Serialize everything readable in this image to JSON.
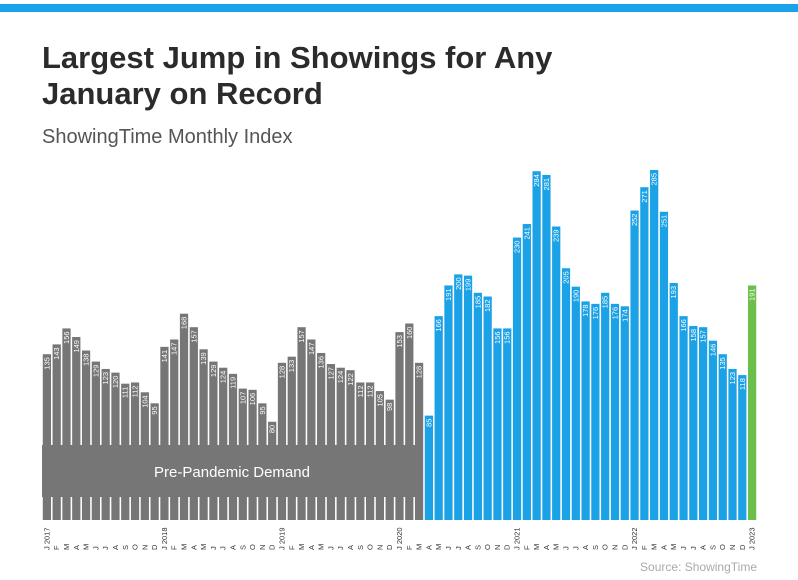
{
  "chart_data": {
    "type": "bar",
    "title": "Largest Jump in Showings for Any January on Record",
    "subtitle": "ShowingTime Monthly Index",
    "annotation": "Pre-Pandemic Demand",
    "source": "Source: ShowingTime",
    "categories": [
      "J 2017",
      "F",
      "M",
      "A",
      "M",
      "J",
      "J",
      "A",
      "S",
      "O",
      "N",
      "D",
      "J 2018",
      "F",
      "M",
      "A",
      "M",
      "J",
      "J",
      "A",
      "S",
      "O",
      "N",
      "D",
      "J 2019",
      "F",
      "M",
      "A",
      "M",
      "J",
      "J",
      "A",
      "S",
      "O",
      "N",
      "D",
      "J 2020",
      "F",
      "M",
      "A",
      "M",
      "J",
      "J",
      "A",
      "S",
      "O",
      "N",
      "D",
      "J 2021",
      "F",
      "M",
      "A",
      "M",
      "J",
      "J",
      "A",
      "S",
      "O",
      "N",
      "D",
      "J 2022",
      "F",
      "M",
      "A",
      "M",
      "J",
      "J",
      "A",
      "S",
      "O",
      "N",
      "D",
      "J 2023"
    ],
    "values": [
      135,
      143,
      156,
      149,
      138,
      129,
      123,
      120,
      111,
      112,
      104,
      95,
      141,
      147,
      168,
      157,
      139,
      129,
      124,
      119,
      107,
      106,
      95,
      80,
      128,
      133,
      157,
      147,
      136,
      127,
      124,
      122,
      112,
      112,
      105,
      98,
      153,
      160,
      128,
      85,
      166,
      191,
      200,
      199,
      185,
      182,
      156,
      156,
      230,
      241,
      284,
      281,
      239,
      205,
      190,
      178,
      176,
      185,
      176,
      174,
      252,
      271,
      285,
      251,
      193,
      166,
      158,
      157,
      146,
      135,
      123,
      118,
      191
    ],
    "colors": [
      "#767676",
      "#767676",
      "#767676",
      "#767676",
      "#767676",
      "#767676",
      "#767676",
      "#767676",
      "#767676",
      "#767676",
      "#767676",
      "#767676",
      "#767676",
      "#767676",
      "#767676",
      "#767676",
      "#767676",
      "#767676",
      "#767676",
      "#767676",
      "#767676",
      "#767676",
      "#767676",
      "#767676",
      "#767676",
      "#767676",
      "#767676",
      "#767676",
      "#767676",
      "#767676",
      "#767676",
      "#767676",
      "#767676",
      "#767676",
      "#767676",
      "#767676",
      "#767676",
      "#767676",
      "#767676",
      "#1ba1e6",
      "#1ba1e6",
      "#1ba1e6",
      "#1ba1e6",
      "#1ba1e6",
      "#1ba1e6",
      "#1ba1e6",
      "#1ba1e6",
      "#1ba1e6",
      "#1ba1e6",
      "#1ba1e6",
      "#1ba1e6",
      "#1ba1e6",
      "#1ba1e6",
      "#1ba1e6",
      "#1ba1e6",
      "#1ba1e6",
      "#1ba1e6",
      "#1ba1e6",
      "#1ba1e6",
      "#1ba1e6",
      "#1ba1e6",
      "#1ba1e6",
      "#1ba1e6",
      "#1ba1e6",
      "#1ba1e6",
      "#1ba1e6",
      "#1ba1e6",
      "#1ba1e6",
      "#1ba1e6",
      "#1ba1e6",
      "#1ba1e6",
      "#1ba1e6",
      "#6cbf4a"
    ],
    "ylim": [
      0,
      285
    ]
  }
}
